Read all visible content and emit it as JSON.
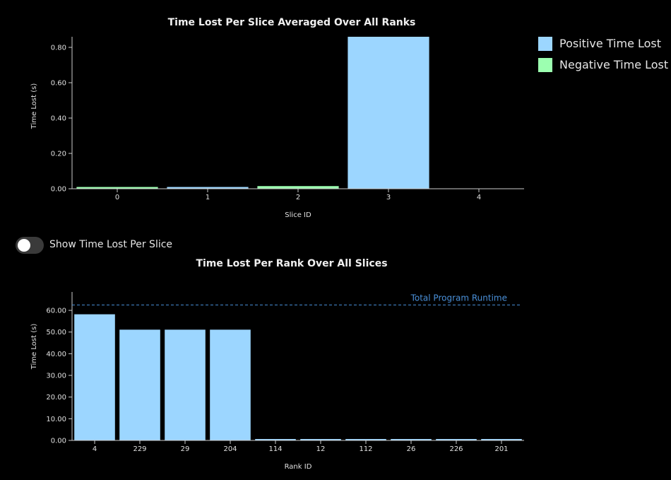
{
  "colors": {
    "positive": "#9cd6ff",
    "negative": "#9cffb0",
    "runtime_line": "#4a90d9",
    "axis": "#cccccc"
  },
  "legend": {
    "items": [
      {
        "label": "Positive Time Lost",
        "color": "#9cd6ff"
      },
      {
        "label": "Negative Time Lost",
        "color": "#9cffb0"
      }
    ],
    "placement": "top-right"
  },
  "toggle": {
    "label": "Show Time Lost Per Slice",
    "checked": false
  },
  "chart_data": [
    {
      "type": "bar",
      "title": "Time Lost Per Slice Averaged Over All Ranks",
      "xlabel": "Slice ID",
      "ylabel": "Time Lost (s)",
      "categories": [
        "0",
        "1",
        "2",
        "3",
        "4"
      ],
      "values": [
        -0.01,
        0.01,
        -0.015,
        0.86,
        0
      ],
      "yticks": [
        "0.00",
        "0.20",
        "0.40",
        "0.60",
        "0.80"
      ],
      "ylim": [
        0,
        0.86
      ],
      "grid": false
    },
    {
      "type": "bar",
      "title": "Time Lost Per Rank Over All Slices",
      "xlabel": "Rank ID",
      "ylabel": "Time Lost (s)",
      "categories": [
        "4",
        "229",
        "29",
        "204",
        "114",
        "12",
        "112",
        "26",
        "226",
        "201"
      ],
      "values": [
        58.2,
        51.1,
        51.1,
        51.1,
        0.1,
        0.1,
        0.1,
        0.1,
        0.1,
        0.1
      ],
      "yticks": [
        "0.00",
        "10.00",
        "20.00",
        "30.00",
        "40.00",
        "50.00",
        "60.00"
      ],
      "ylim": [
        0,
        68.5
      ],
      "reference_line": {
        "label": "Total Program Runtime",
        "value": 62.5
      },
      "grid": false
    }
  ]
}
